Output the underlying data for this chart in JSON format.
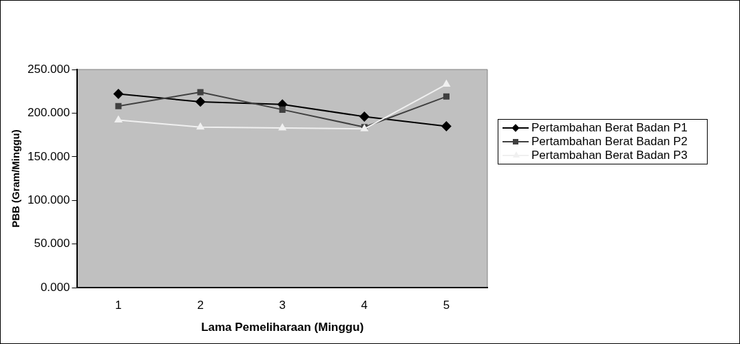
{
  "chart_data": {
    "type": "line",
    "xlabel": "Lama Pemeliharaan (Minggu)",
    "ylabel": "PBB (Gram/Minggu)",
    "categories": [
      "1",
      "2",
      "3",
      "4",
      "5"
    ],
    "series": [
      {
        "name": "Pertambahan Berat Badan P1",
        "color": "#000000",
        "marker": "diamond",
        "values": [
          222,
          213,
          210,
          196,
          185
        ]
      },
      {
        "name": "Pertambahan Berat Badan P2",
        "color": "#404040",
        "marker": "square",
        "values": [
          208,
          224,
          204,
          184,
          219
        ]
      },
      {
        "name": "Pertambahan Berat Badan P3",
        "color": "#f0f0f0",
        "marker": "triangle",
        "values": [
          192,
          184,
          183,
          182,
          233
        ]
      }
    ],
    "ylim": [
      0,
      250
    ],
    "yticks": [
      {
        "value": 0,
        "label": "0.000"
      },
      {
        "value": 50,
        "label": "50.000"
      },
      {
        "value": 100,
        "label": "100.000"
      },
      {
        "value": 150,
        "label": "150.000"
      },
      {
        "value": 200,
        "label": "200.000"
      },
      {
        "value": 250,
        "label": "250.000"
      }
    ],
    "grid": false,
    "legend": "right"
  }
}
